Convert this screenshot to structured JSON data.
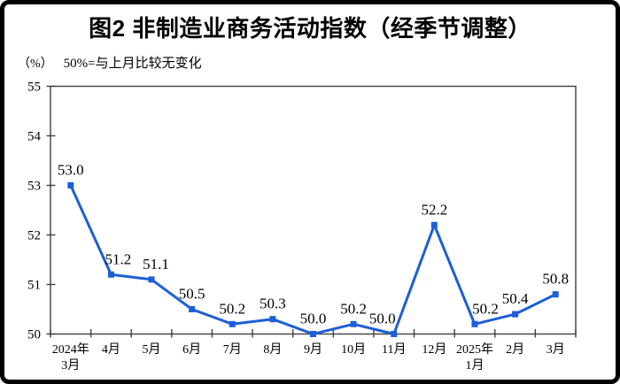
{
  "header": {
    "title": "图2 非制造业商务活动指数（经季节调整）",
    "unit_label": "（%）",
    "note": "50%=与上月比较无变化"
  },
  "colors": {
    "line": "#1C5FD6",
    "axis": "#404040",
    "text": "#000000",
    "frame": "#000000",
    "background": "#FFFFFF"
  },
  "chart_data": {
    "type": "line",
    "title": "图2 非制造业商务活动指数（经季节调整）",
    "unit_label": "（%）",
    "annotation": "50%=与上月比较无变化",
    "categories": [
      "2024年\n3月",
      "4月",
      "5月",
      "6月",
      "7月",
      "8月",
      "9月",
      "10月",
      "11月",
      "12月",
      "2025年\n1月",
      "2月",
      "3月"
    ],
    "values": [
      53.0,
      51.2,
      51.1,
      50.5,
      50.2,
      50.3,
      50.0,
      50.2,
      50.0,
      52.2,
      50.2,
      50.4,
      50.8
    ],
    "point_labels": [
      "53.0",
      "51.2",
      "51.1",
      "50.5",
      "50.2",
      "50.3",
      "50.0",
      "50.2",
      "50.0",
      "52.2",
      "50.2",
      "50.4",
      "50.8"
    ],
    "ylim": [
      50,
      55
    ],
    "yticks": [
      50,
      51,
      52,
      53,
      54,
      55
    ],
    "grid": false,
    "legend": "none",
    "marker": "square",
    "line_color": "#1C5FD6"
  }
}
